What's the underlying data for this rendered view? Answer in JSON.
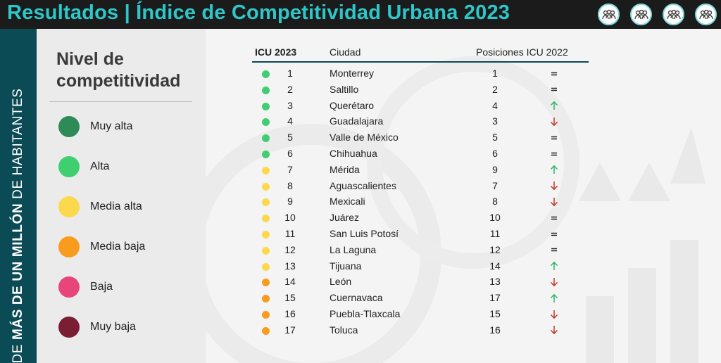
{
  "header": {
    "title": "Resultados | Índice de Competitividad Urbana 2023"
  },
  "sidebar": {
    "prefix": "DE",
    "bold": "MÁS DE UN MILLÓN",
    "suffix": "DE HABITANTES"
  },
  "legend": {
    "title": "Nivel de competitividad",
    "items": [
      {
        "label": "Muy alta",
        "color": "#2e8b57"
      },
      {
        "label": "Alta",
        "color": "#3fcf6e"
      },
      {
        "label": "Media alta",
        "color": "#fcd84c"
      },
      {
        "label": "Media baja",
        "color": "#f99b1c"
      },
      {
        "label": "Baja",
        "color": "#e8467a"
      },
      {
        "label": "Muy baja",
        "color": "#7a1f33"
      }
    ]
  },
  "table": {
    "col_rank": "ICU 2023",
    "col_city": "Ciudad",
    "col_prev": "Posiciones ICU 2022",
    "rows": [
      {
        "rank": "1",
        "city": "Monterrey",
        "prev": "1",
        "change": "same",
        "level": "Alta"
      },
      {
        "rank": "2",
        "city": "Saltillo",
        "prev": "2",
        "change": "same",
        "level": "Alta"
      },
      {
        "rank": "3",
        "city": "Querétaro",
        "prev": "4",
        "change": "up",
        "level": "Alta"
      },
      {
        "rank": "4",
        "city": "Guadalajara",
        "prev": "3",
        "change": "down",
        "level": "Alta"
      },
      {
        "rank": "5",
        "city": "Valle de México",
        "prev": "5",
        "change": "same",
        "level": "Alta"
      },
      {
        "rank": "6",
        "city": "Chihuahua",
        "prev": "6",
        "change": "same",
        "level": "Alta"
      },
      {
        "rank": "7",
        "city": "Mérida",
        "prev": "9",
        "change": "up",
        "level": "Media alta"
      },
      {
        "rank": "8",
        "city": "Aguascalientes",
        "prev": "7",
        "change": "down",
        "level": "Media alta"
      },
      {
        "rank": "9",
        "city": "Mexicali",
        "prev": "8",
        "change": "down",
        "level": "Media alta"
      },
      {
        "rank": "10",
        "city": "Juárez",
        "prev": "10",
        "change": "same",
        "level": "Media alta"
      },
      {
        "rank": "11",
        "city": "San Luis Potosí",
        "prev": "11",
        "change": "same",
        "level": "Media alta"
      },
      {
        "rank": "12",
        "city": "La Laguna",
        "prev": "12",
        "change": "same",
        "level": "Media alta"
      },
      {
        "rank": "13",
        "city": "Tijuana",
        "prev": "14",
        "change": "up",
        "level": "Media alta"
      },
      {
        "rank": "14",
        "city": "León",
        "prev": "13",
        "change": "down",
        "level": "Media baja"
      },
      {
        "rank": "15",
        "city": "Cuernavaca",
        "prev": "17",
        "change": "up",
        "level": "Media baja"
      },
      {
        "rank": "16",
        "city": "Puebla-Tlaxcala",
        "prev": "15",
        "change": "down",
        "level": "Media baja"
      },
      {
        "rank": "17",
        "city": "Toluca",
        "prev": "16",
        "change": "down",
        "level": "Media baja"
      }
    ]
  },
  "colors": {
    "accent": "#2ec7c9",
    "sidebar": "#0b4b55",
    "up_arrow": "#2bb673",
    "down_arrow": "#c0392b"
  },
  "icons": [
    "group-icon",
    "group-icon",
    "group-icon",
    "group-icon"
  ]
}
